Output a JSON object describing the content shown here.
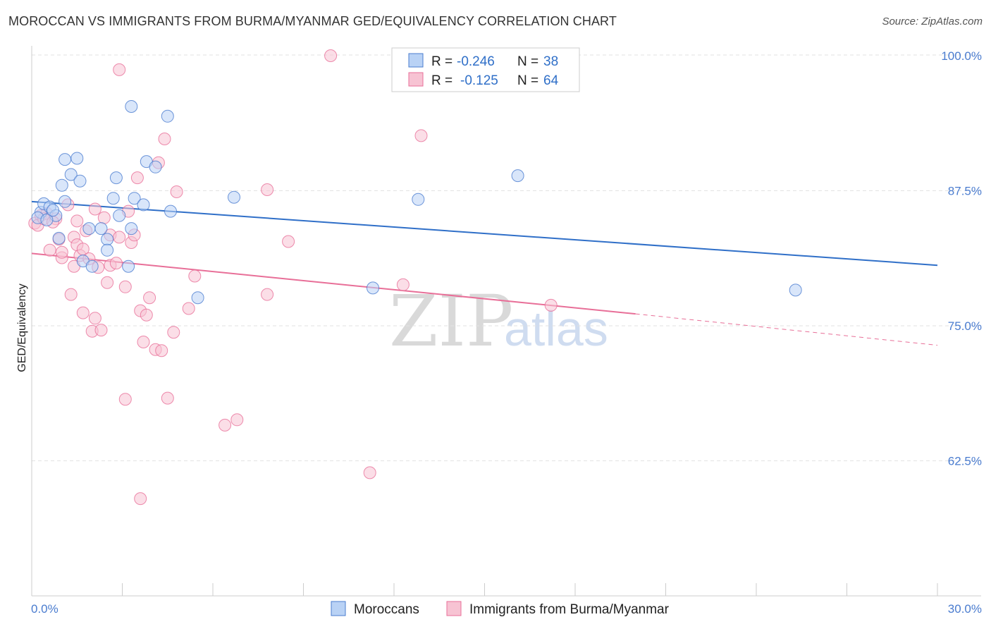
{
  "title": "MOROCCAN VS IMMIGRANTS FROM BURMA/MYANMAR GED/EQUIVALENCY CORRELATION CHART",
  "source": "Source: ZipAtlas.com",
  "watermark": {
    "zip": "ZIP",
    "atlas": "atlas"
  },
  "colors": {
    "blue": "#4a7ccf",
    "blue_fill": "#b9d2f5",
    "blue_line": "#2f6fc8",
    "pink": "#e86f98",
    "pink_fill": "#f7c3d3",
    "grid": "#e2e2e2"
  },
  "legend": {
    "rows": [
      {
        "r_label": "R =",
        "r_value": "-0.246",
        "n_label": "N =",
        "n_value": "38"
      },
      {
        "r_label": "R =",
        "r_value": "-0.125",
        "n_label": "N =",
        "n_value": "64"
      }
    ]
  },
  "bottom_legend": [
    "Moroccans",
    "Immigrants from Burma/Myanmar"
  ],
  "chart_data": {
    "type": "scatter",
    "title": "MOROCCAN VS IMMIGRANTS FROM BURMA/MYANMAR GED/EQUIVALENCY CORRELATION CHART",
    "xlabel": "",
    "ylabel": "GED/Equivalency",
    "xlim": [
      0,
      30
    ],
    "ylim": [
      50,
      101
    ],
    "x_tick_labels": [
      "0.0%",
      "30.0%"
    ],
    "y_ticks": [
      62.5,
      75.0,
      87.5,
      100.0
    ],
    "y_tick_labels": [
      "62.5%",
      "75.0%",
      "87.5%",
      "100.0%"
    ],
    "series": [
      {
        "name": "Moroccans",
        "r": -0.246,
        "n": 38,
        "trend": {
          "x": [
            0,
            30
          ],
          "y": [
            86.5,
            80.6
          ]
        },
        "points": [
          [
            0.3,
            85.5
          ],
          [
            0.4,
            86.3
          ],
          [
            0.6,
            86.0
          ],
          [
            0.8,
            85.2
          ],
          [
            0.9,
            83.1
          ],
          [
            1.0,
            88.0
          ],
          [
            1.1,
            86.5
          ],
          [
            1.1,
            90.4
          ],
          [
            1.3,
            89.0
          ],
          [
            1.5,
            90.5
          ],
          [
            1.6,
            88.4
          ],
          [
            1.7,
            81.0
          ],
          [
            1.9,
            84.0
          ],
          [
            2.0,
            80.5
          ],
          [
            2.3,
            84.0
          ],
          [
            2.5,
            83.0
          ],
          [
            2.5,
            82.0
          ],
          [
            2.7,
            86.8
          ],
          [
            2.8,
            88.7
          ],
          [
            2.9,
            85.2
          ],
          [
            3.2,
            80.5
          ],
          [
            3.3,
            84.0
          ],
          [
            3.3,
            95.3
          ],
          [
            3.4,
            86.8
          ],
          [
            3.7,
            86.2
          ],
          [
            3.8,
            90.2
          ],
          [
            4.1,
            89.7
          ],
          [
            4.5,
            94.4
          ],
          [
            4.6,
            85.6
          ],
          [
            5.5,
            77.6
          ],
          [
            6.7,
            86.9
          ],
          [
            11.3,
            78.5
          ],
          [
            12.8,
            86.7
          ],
          [
            16.1,
            88.9
          ],
          [
            25.3,
            78.3
          ],
          [
            0.2,
            85.0
          ],
          [
            0.5,
            84.8
          ],
          [
            0.7,
            85.7
          ]
        ]
      },
      {
        "name": "Immigrants from Burma/Myanmar",
        "r": -0.125,
        "n": 64,
        "trend": {
          "x": [
            0,
            20.0
          ],
          "y": [
            81.7,
            76.1
          ]
        },
        "trend_dashed": {
          "x": [
            20.0,
            30
          ],
          "y": [
            76.1,
            73.2
          ]
        },
        "points": [
          [
            0.1,
            84.5
          ],
          [
            0.3,
            85.2
          ],
          [
            0.5,
            85.4
          ],
          [
            0.6,
            82.0
          ],
          [
            0.8,
            84.9
          ],
          [
            0.9,
            83.0
          ],
          [
            1.0,
            81.3
          ],
          [
            1.0,
            81.8
          ],
          [
            1.2,
            86.2
          ],
          [
            1.3,
            77.9
          ],
          [
            1.4,
            80.5
          ],
          [
            1.4,
            83.2
          ],
          [
            1.5,
            82.5
          ],
          [
            1.6,
            81.5
          ],
          [
            1.7,
            82.1
          ],
          [
            1.7,
            76.2
          ],
          [
            1.8,
            83.8
          ],
          [
            1.9,
            81.2
          ],
          [
            2.0,
            74.5
          ],
          [
            2.1,
            85.8
          ],
          [
            2.1,
            75.7
          ],
          [
            2.2,
            80.4
          ],
          [
            2.3,
            74.6
          ],
          [
            2.4,
            85.0
          ],
          [
            2.5,
            79.0
          ],
          [
            2.6,
            83.4
          ],
          [
            2.6,
            80.6
          ],
          [
            2.8,
            80.8
          ],
          [
            2.9,
            83.2
          ],
          [
            2.9,
            98.7
          ],
          [
            3.1,
            68.2
          ],
          [
            3.1,
            78.6
          ],
          [
            3.2,
            85.6
          ],
          [
            3.3,
            82.7
          ],
          [
            3.4,
            83.4
          ],
          [
            3.5,
            88.7
          ],
          [
            3.6,
            59.0
          ],
          [
            3.6,
            76.4
          ],
          [
            3.7,
            73.5
          ],
          [
            3.8,
            76.0
          ],
          [
            3.9,
            77.6
          ],
          [
            4.1,
            72.8
          ],
          [
            4.2,
            90.1
          ],
          [
            4.3,
            72.7
          ],
          [
            4.4,
            92.3
          ],
          [
            4.5,
            68.3
          ],
          [
            4.7,
            74.4
          ],
          [
            4.8,
            87.4
          ],
          [
            5.2,
            76.6
          ],
          [
            5.4,
            79.6
          ],
          [
            6.4,
            65.8
          ],
          [
            6.8,
            66.3
          ],
          [
            7.8,
            87.6
          ],
          [
            7.8,
            77.9
          ],
          [
            8.5,
            82.8
          ],
          [
            9.9,
            100.0
          ],
          [
            11.2,
            61.4
          ],
          [
            12.3,
            78.8
          ],
          [
            12.9,
            92.6
          ],
          [
            17.2,
            76.9
          ],
          [
            0.2,
            84.3
          ],
          [
            0.4,
            84.9
          ],
          [
            0.7,
            84.6
          ],
          [
            1.5,
            84.7
          ]
        ]
      }
    ]
  }
}
